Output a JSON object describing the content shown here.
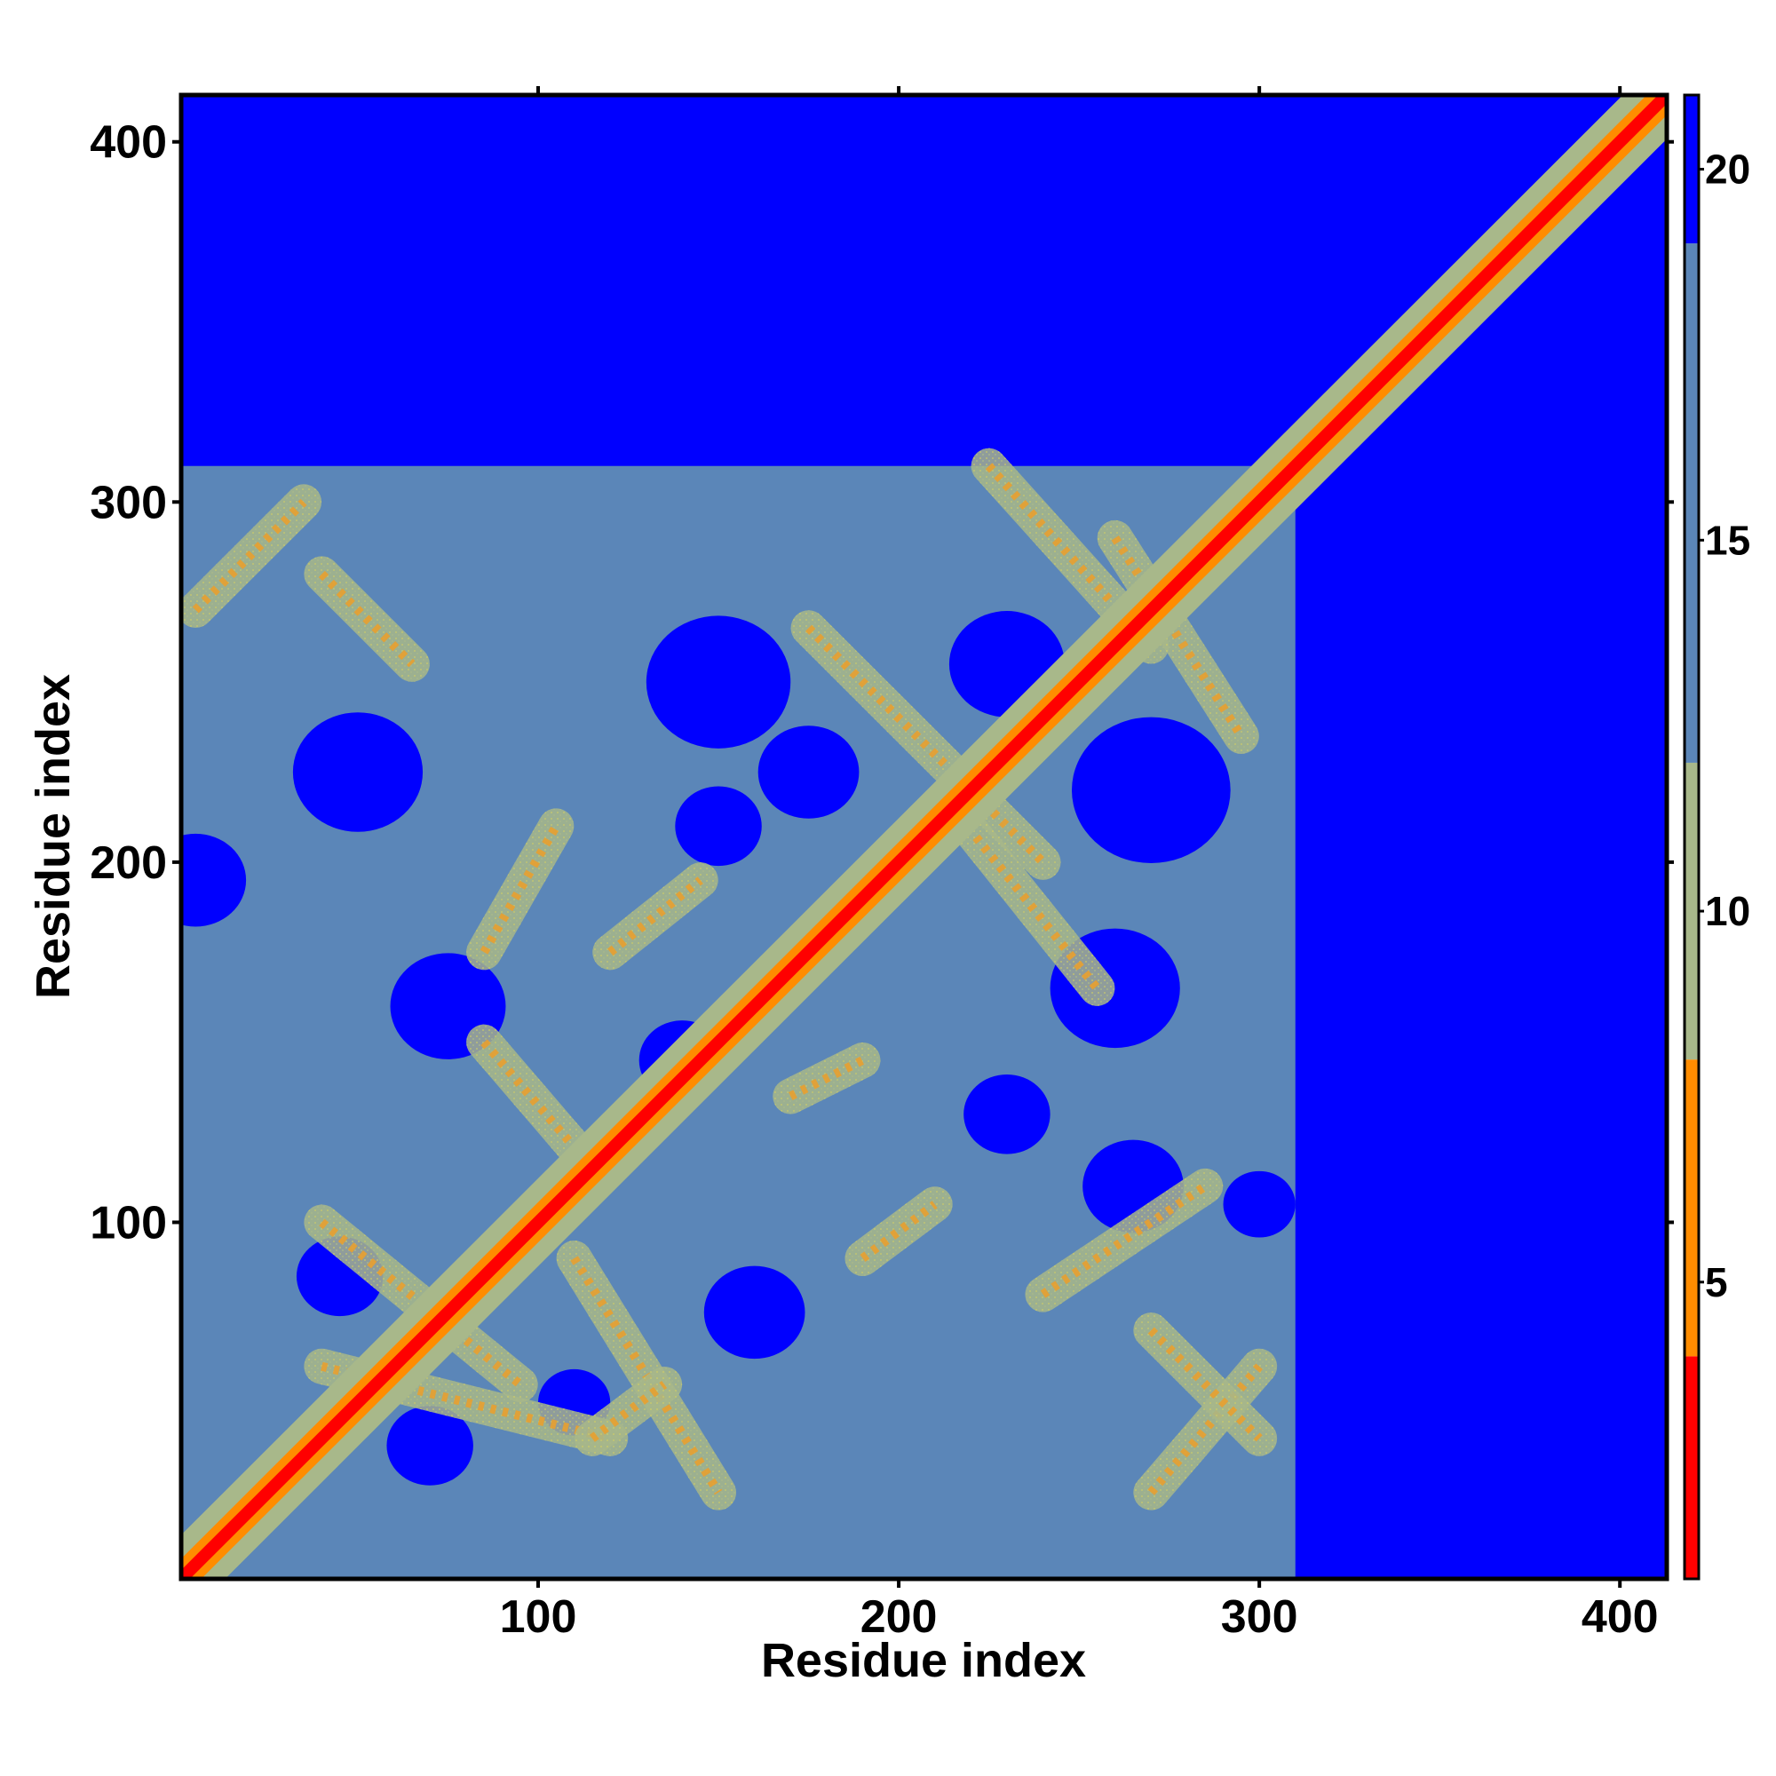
{
  "chart_data": {
    "type": "heatmap",
    "title": "",
    "xlabel": "Residue index",
    "ylabel": "Residue index",
    "xlim": [
      1,
      413
    ],
    "ylim": [
      1,
      413
    ],
    "x_ticks": [
      100,
      200,
      300,
      400
    ],
    "y_ticks": [
      100,
      200,
      300,
      400
    ],
    "x_tick_labels": [
      "100",
      "200",
      "300",
      "400"
    ],
    "y_tick_labels": [
      "100",
      "200",
      "300",
      "400"
    ],
    "value_description": "pairwise residue distance (Å)",
    "colorbar": {
      "range": [
        1,
        21
      ],
      "ticks": [
        5,
        10,
        15,
        20
      ],
      "tick_labels": [
        "5",
        "10",
        "15",
        "20"
      ],
      "segments": [
        {
          "from": 1,
          "to": 4,
          "color": "#ff0000"
        },
        {
          "from": 4,
          "to": 8,
          "color": "#ff8c00"
        },
        {
          "from": 8,
          "to": 12,
          "color": "#a8b88a"
        },
        {
          "from": 12,
          "to": 19,
          "color": "#5b86b8"
        },
        {
          "from": 19,
          "to": 21,
          "color": "#0000ff"
        }
      ]
    },
    "structured_region": [
      1,
      310
    ],
    "diagonal_band": [
      1,
      413
    ],
    "contact_stripes": [
      {
        "from": [
          40,
          60
        ],
        "to": [
          120,
          40
        ],
        "kind": "antiparallel"
      },
      {
        "from": [
          110,
          90
        ],
        "to": [
          150,
          25
        ],
        "kind": "antiparallel"
      },
      {
        "from": [
          40,
          100
        ],
        "to": [
          95,
          55
        ],
        "kind": "antiparallel"
      },
      {
        "from": [
          85,
          150
        ],
        "to": [
          115,
          115
        ],
        "kind": "antiparallel"
      },
      {
        "from": [
          175,
          265
        ],
        "to": [
          240,
          200
        ],
        "kind": "antiparallel"
      },
      {
        "from": [
          225,
          310
        ],
        "to": [
          270,
          260
        ],
        "kind": "antiparallel"
      },
      {
        "from": [
          260,
          290
        ],
        "to": [
          295,
          235
        ],
        "kind": "antiparallel"
      },
      {
        "from": [
          215,
          215
        ],
        "to": [
          255,
          165
        ],
        "kind": "antiparallel"
      },
      {
        "from": [
          5,
          270
        ],
        "to": [
          35,
          300
        ],
        "kind": "parallel"
      },
      {
        "from": [
          40,
          280
        ],
        "to": [
          65,
          255
        ],
        "kind": "antiparallel"
      },
      {
        "from": [
          85,
          175
        ],
        "to": [
          105,
          210
        ],
        "kind": "parallel"
      },
      {
        "from": [
          120,
          175
        ],
        "to": [
          145,
          195
        ],
        "kind": "parallel"
      },
      {
        "from": [
          190,
          90
        ],
        "to": [
          210,
          105
        ],
        "kind": "parallel"
      },
      {
        "from": [
          270,
          25
        ],
        "to": [
          300,
          60
        ],
        "kind": "parallel"
      },
      {
        "from": [
          240,
          80
        ],
        "to": [
          285,
          110
        ],
        "kind": "parallel"
      },
      {
        "from": [
          170,
          135
        ],
        "to": [
          190,
          145
        ],
        "kind": "parallel"
      },
      {
        "from": [
          115,
          40
        ],
        "to": [
          135,
          55
        ],
        "kind": "parallel"
      },
      {
        "from": [
          270,
          70
        ],
        "to": [
          300,
          40
        ],
        "kind": "antiparallel"
      }
    ],
    "void_regions": [
      {
        "center": [
          50,
          225
        ],
        "radius": 18
      },
      {
        "center": [
          75,
          160
        ],
        "radius": 16
      },
      {
        "center": [
          150,
          250
        ],
        "radius": 20
      },
      {
        "center": [
          230,
          255
        ],
        "radius": 16
      },
      {
        "center": [
          270,
          220
        ],
        "radius": 22
      },
      {
        "center": [
          260,
          165
        ],
        "radius": 18
      },
      {
        "center": [
          45,
          85
        ],
        "radius": 12
      },
      {
        "center": [
          160,
          75
        ],
        "radius": 14
      },
      {
        "center": [
          265,
          110
        ],
        "radius": 14
      },
      {
        "center": [
          230,
          130
        ],
        "radius": 12
      },
      {
        "center": [
          70,
          38
        ],
        "radius": 12
      },
      {
        "center": [
          110,
          50
        ],
        "radius": 10
      },
      {
        "center": [
          140,
          145
        ],
        "radius": 12
      },
      {
        "center": [
          175,
          225
        ],
        "radius": 14
      },
      {
        "center": [
          5,
          195
        ],
        "radius": 14
      },
      {
        "center": [
          300,
          105
        ],
        "radius": 10
      },
      {
        "center": [
          150,
          210
        ],
        "radius": 12
      }
    ]
  }
}
